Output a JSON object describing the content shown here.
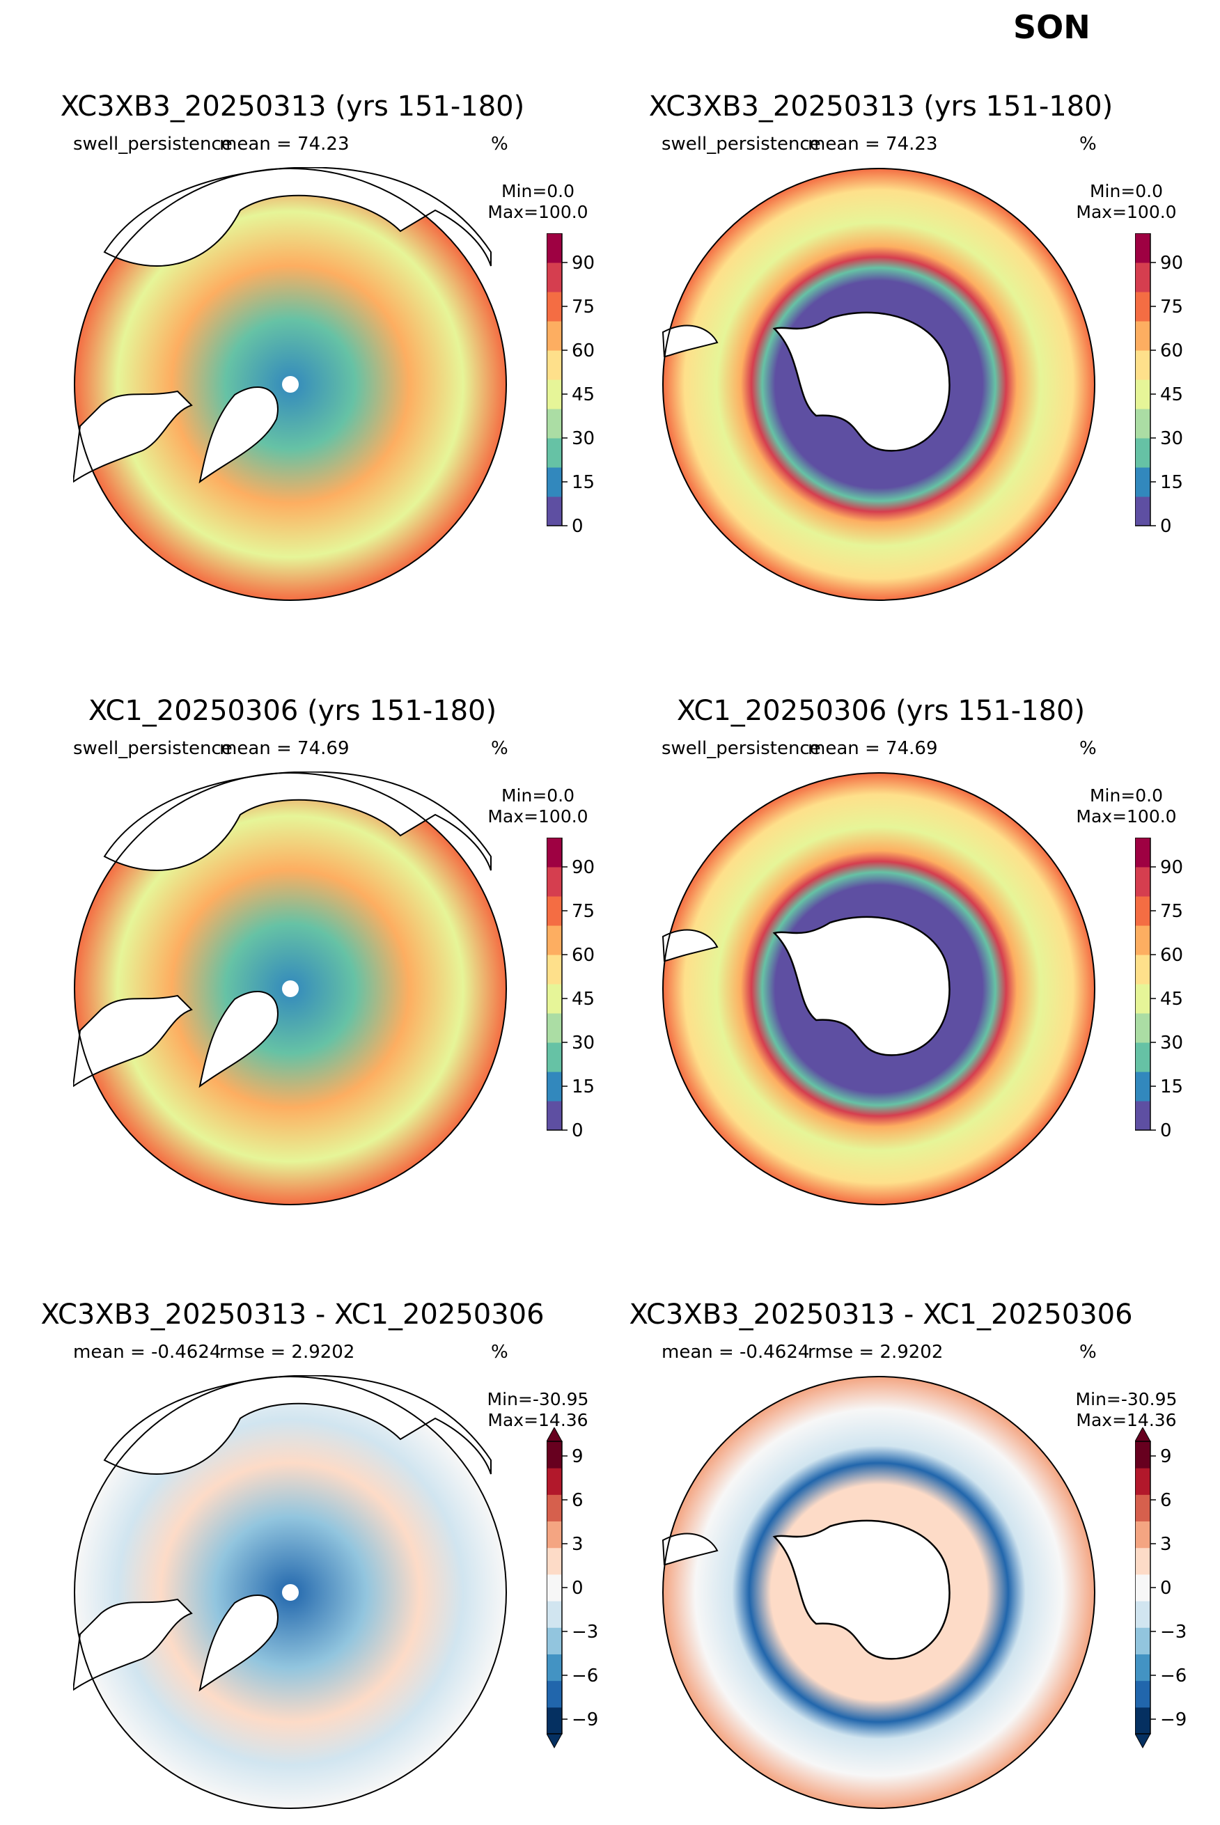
{
  "figure": {
    "season": "SON"
  },
  "panels": [
    {
      "title": "XC3XB3_20250313 (yrs 151-180)",
      "sub_left": "swell_persistence",
      "sub_center": "mean = 74.23",
      "sub_right": "%",
      "min_label": "Min=0.0",
      "max_label": "Max=100.0",
      "hemisphere": "north",
      "kind": "abs"
    },
    {
      "title": "XC3XB3_20250313 (yrs 151-180)",
      "sub_left": "swell_persistence",
      "sub_center": "mean = 74.23",
      "sub_right": "%",
      "min_label": "Min=0.0",
      "max_label": "Max=100.0",
      "hemisphere": "south",
      "kind": "abs"
    },
    {
      "title": "XC1_20250306 (yrs 151-180)",
      "sub_left": "swell_persistence",
      "sub_center": "mean = 74.69",
      "sub_right": "%",
      "min_label": "Min=0.0",
      "max_label": "Max=100.0",
      "hemisphere": "north",
      "kind": "abs"
    },
    {
      "title": "XC1_20250306 (yrs 151-180)",
      "sub_left": "swell_persistence",
      "sub_center": "mean = 74.69",
      "sub_right": "%",
      "min_label": "Min=0.0",
      "max_label": "Max=100.0",
      "hemisphere": "south",
      "kind": "abs"
    },
    {
      "title": "XC3XB3_20250313 - XC1_20250306",
      "sub_left": "mean = -0.4624",
      "sub_center": "rmse = 2.9202",
      "sub_right": "%",
      "min_label": "Min=-30.95",
      "max_label": "Max=14.36",
      "hemisphere": "north",
      "kind": "diff"
    },
    {
      "title": "XC3XB3_20250313 - XC1_20250306",
      "sub_left": "mean = -0.4624",
      "sub_center": "rmse = 2.9202",
      "sub_right": "%",
      "min_label": "Min=-30.95",
      "max_label": "Max=14.36",
      "hemisphere": "south",
      "kind": "diff"
    }
  ],
  "colorbars": {
    "abs": {
      "ticks": [
        0,
        15,
        30,
        45,
        60,
        75,
        90
      ],
      "range": [
        0,
        100
      ],
      "colors": [
        "#5e4fa2",
        "#3288bd",
        "#66c2a5",
        "#abdda4",
        "#e6f598",
        "#fee08b",
        "#fdae61",
        "#f46d43",
        "#d53e4f",
        "#9e0142"
      ]
    },
    "diff": {
      "ticks": [
        -9,
        -6,
        -3,
        0,
        3,
        6,
        9
      ],
      "range": [
        -10,
        10
      ],
      "colors": [
        "#053061",
        "#2166ac",
        "#4393c3",
        "#92c5de",
        "#d1e5f0",
        "#f7f7f7",
        "#fddbc7",
        "#f4a582",
        "#d6604d",
        "#b2182b",
        "#67001f"
      ]
    }
  }
}
